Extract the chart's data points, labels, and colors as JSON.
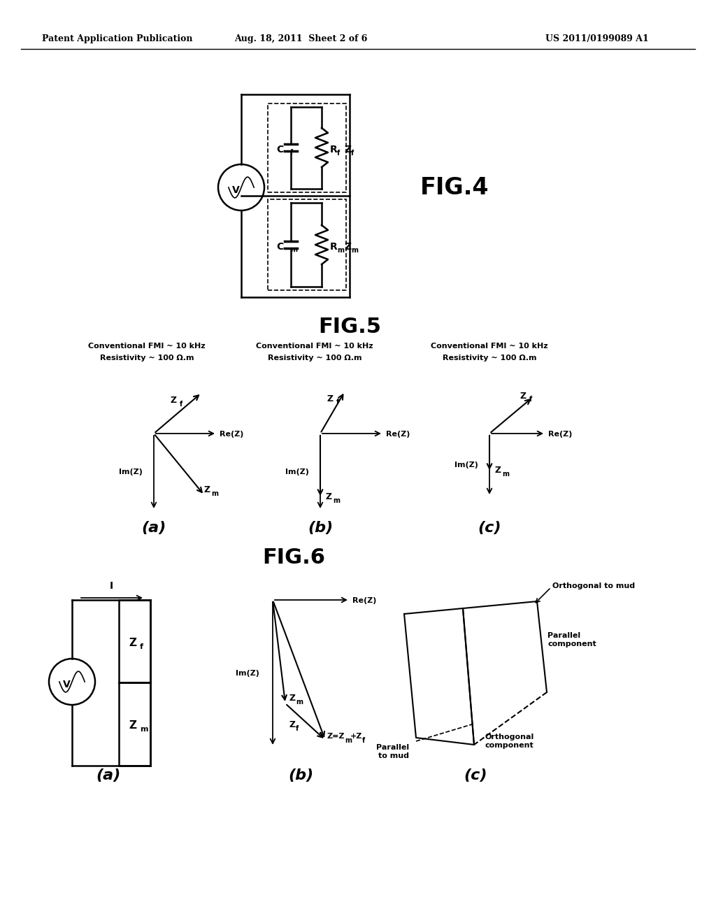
{
  "bg_color": "#ffffff",
  "header_left": "Patent Application Publication",
  "header_center": "Aug. 18, 2011  Sheet 2 of 6",
  "header_right": "US 2011/0199089 A1",
  "fig4_label": "FIG.4",
  "fig5_label": "FIG.5",
  "fig6_label": "FIG.6",
  "fig5_subtitle": "Conventional FMI ~ 10 kHz\nResistivity ~ 100 Ω.m"
}
